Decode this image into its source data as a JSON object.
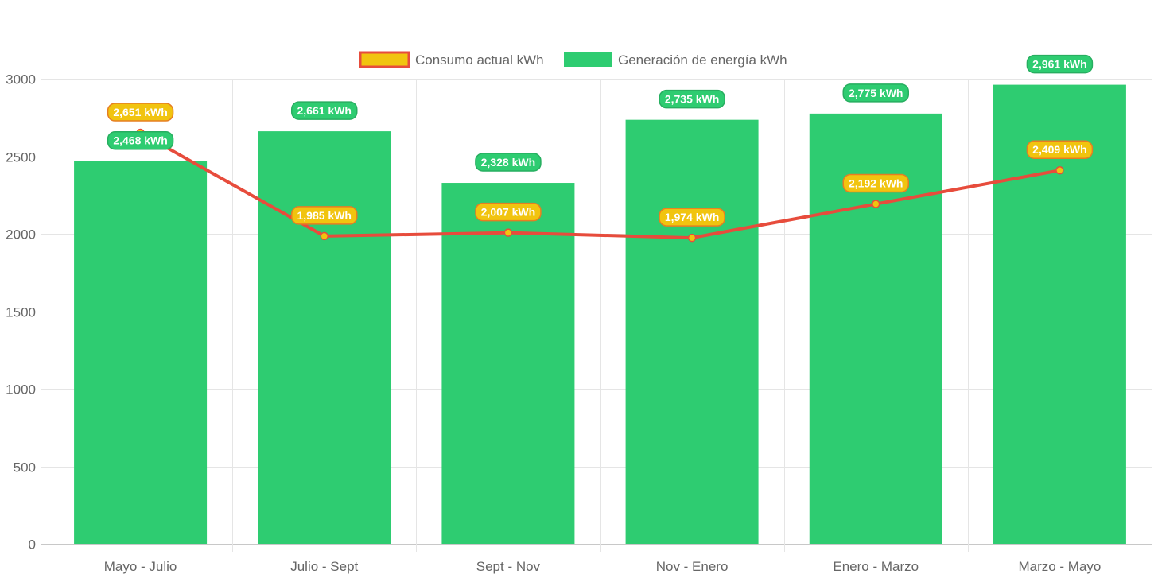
{
  "chart_data": {
    "type": "bar",
    "title": "",
    "xlabel": "",
    "ylabel": "",
    "categories": [
      "Mayo - Julio",
      "Julio - Sept",
      "Sept - Nov",
      "Nov - Enero",
      "Enero - Marzo",
      "Marzo - Mayo"
    ],
    "ylim": [
      0,
      3000
    ],
    "yticks": [
      0,
      500,
      1000,
      1500,
      2000,
      2500,
      3000
    ],
    "grid": true,
    "legend_position": "top",
    "series": [
      {
        "name": "Consumo actual kWh",
        "type": "line",
        "values": [
          2651,
          1985,
          2007,
          1974,
          2192,
          2409
        ],
        "labels": [
          "2,651 kWh",
          "1,985 kWh",
          "2,007 kWh",
          "1,974 kWh",
          "2,192 kWh",
          "2,409 kWh"
        ],
        "line_color": "#e74c3c",
        "fill_color": "#f1c40f"
      },
      {
        "name": "Generación de energía kWh",
        "type": "bar",
        "values": [
          2468,
          2661,
          2328,
          2735,
          2775,
          2961
        ],
        "labels": [
          "2,468 kWh",
          "2,661 kWh",
          "2,328 kWh",
          "2,735 kWh",
          "2,775 kWh",
          "2,961 kWh"
        ],
        "color": "#2ecc71",
        "label_border_color": "#27ae60"
      }
    ]
  }
}
